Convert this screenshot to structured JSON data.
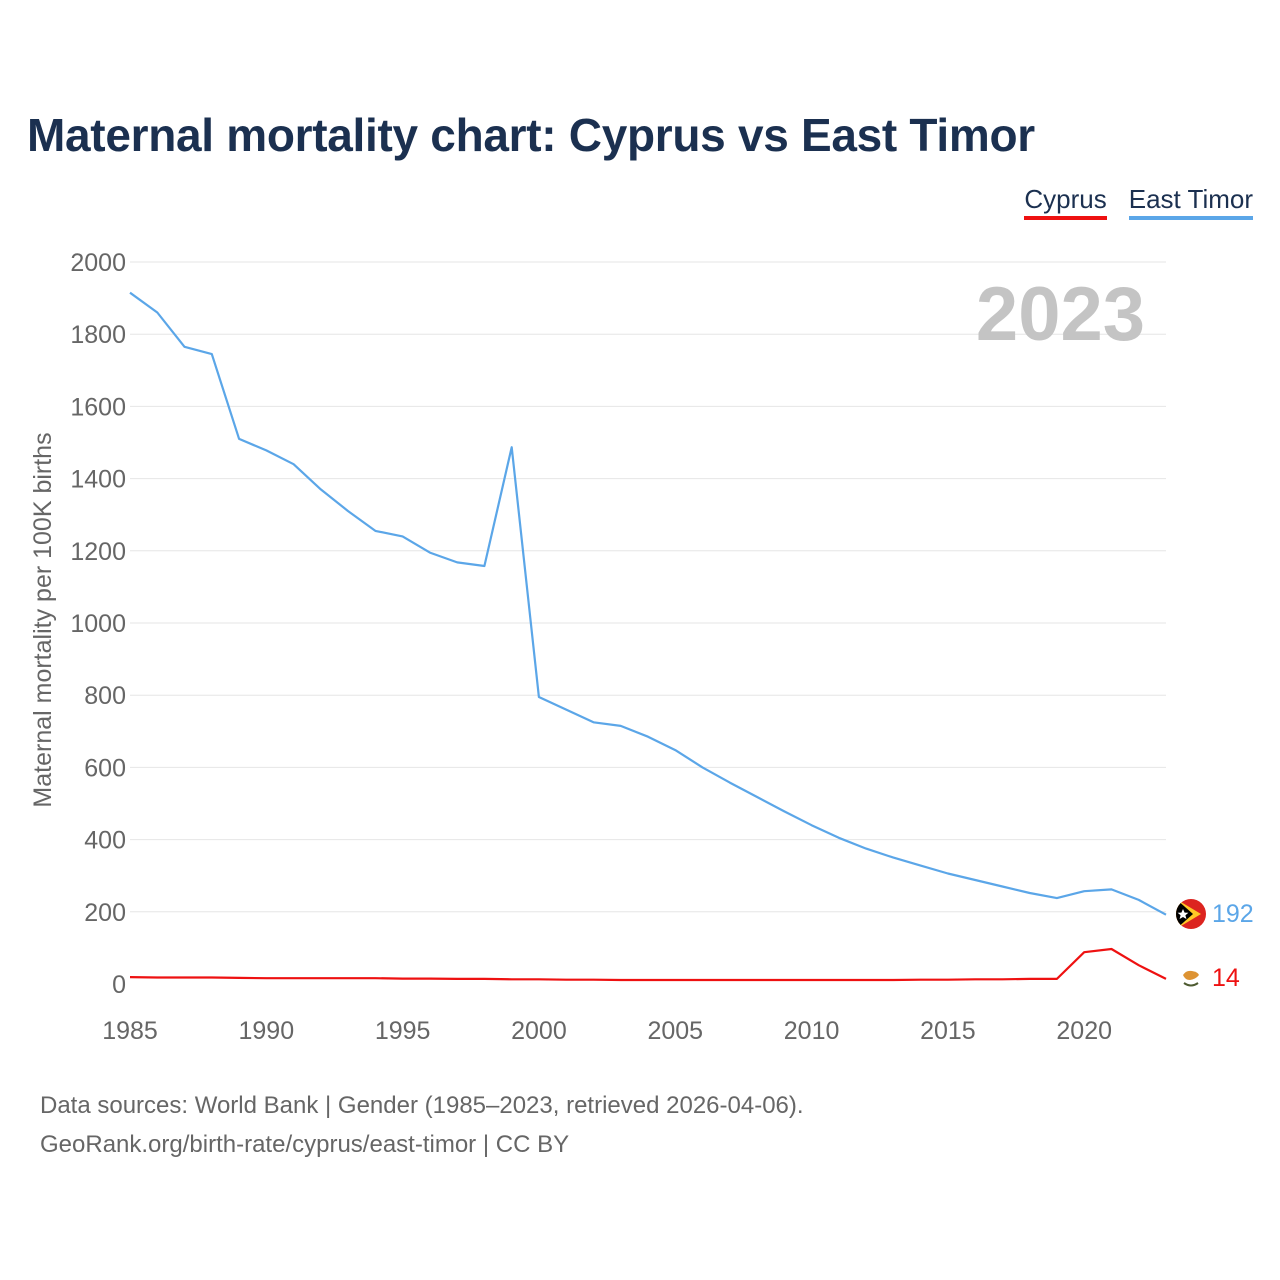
{
  "title": "Maternal mortality chart: Cyprus vs East Timor",
  "colors": {
    "Cyprus": "#ee1111",
    "East Timor": "#5ba6e8",
    "grid": "#e6e6e6",
    "tick": "#666666",
    "year": "#c4c4c4"
  },
  "footer": {
    "line1": "Data sources: World Bank | Gender (1985–2023, retrieved 2026-04-06).",
    "line2": "GeoRank.org/birth-rate/cyprus/east-timor | CC BY"
  },
  "chart_data": {
    "type": "line",
    "title": "Maternal mortality chart: Cyprus vs East Timor",
    "xlabel": "",
    "ylabel": "Maternal mortality per 100K births",
    "xlim": [
      1985,
      2023
    ],
    "ylim": [
      0,
      2000
    ],
    "yticks": [
      0,
      200,
      400,
      600,
      800,
      1000,
      1200,
      1400,
      1600,
      1800,
      2000
    ],
    "xticks": [
      1985,
      1990,
      1995,
      2000,
      2005,
      2010,
      2015,
      2020
    ],
    "year_label": "2023",
    "legend": [
      "Cyprus",
      "East Timor"
    ],
    "legend_position": "top-right",
    "x": [
      1985,
      1986,
      1987,
      1988,
      1989,
      1990,
      1991,
      1992,
      1993,
      1994,
      1995,
      1996,
      1997,
      1998,
      1999,
      2000,
      2001,
      2002,
      2003,
      2004,
      2005,
      2006,
      2007,
      2008,
      2009,
      2010,
      2011,
      2012,
      2013,
      2014,
      2015,
      2016,
      2017,
      2018,
      2019,
      2020,
      2021,
      2022,
      2023
    ],
    "series": [
      {
        "name": "Cyprus",
        "end_label": "14",
        "values": [
          19,
          18,
          18,
          18,
          17,
          16,
          16,
          16,
          16,
          16,
          15,
          15,
          14,
          14,
          13,
          13,
          12,
          12,
          11,
          11,
          11,
          11,
          11,
          11,
          11,
          11,
          11,
          11,
          11,
          12,
          12,
          13,
          13,
          14,
          14,
          88,
          97,
          52,
          14
        ]
      },
      {
        "name": "East Timor",
        "end_label": "192",
        "values": [
          1915,
          1860,
          1765,
          1745,
          1510,
          1478,
          1440,
          1370,
          1310,
          1255,
          1240,
          1195,
          1168,
          1158,
          1487,
          795,
          760,
          725,
          715,
          685,
          648,
          600,
          558,
          518,
          478,
          440,
          405,
          375,
          350,
          328,
          306,
          288,
          270,
          252,
          238,
          257,
          262,
          233,
          192
        ]
      }
    ]
  }
}
